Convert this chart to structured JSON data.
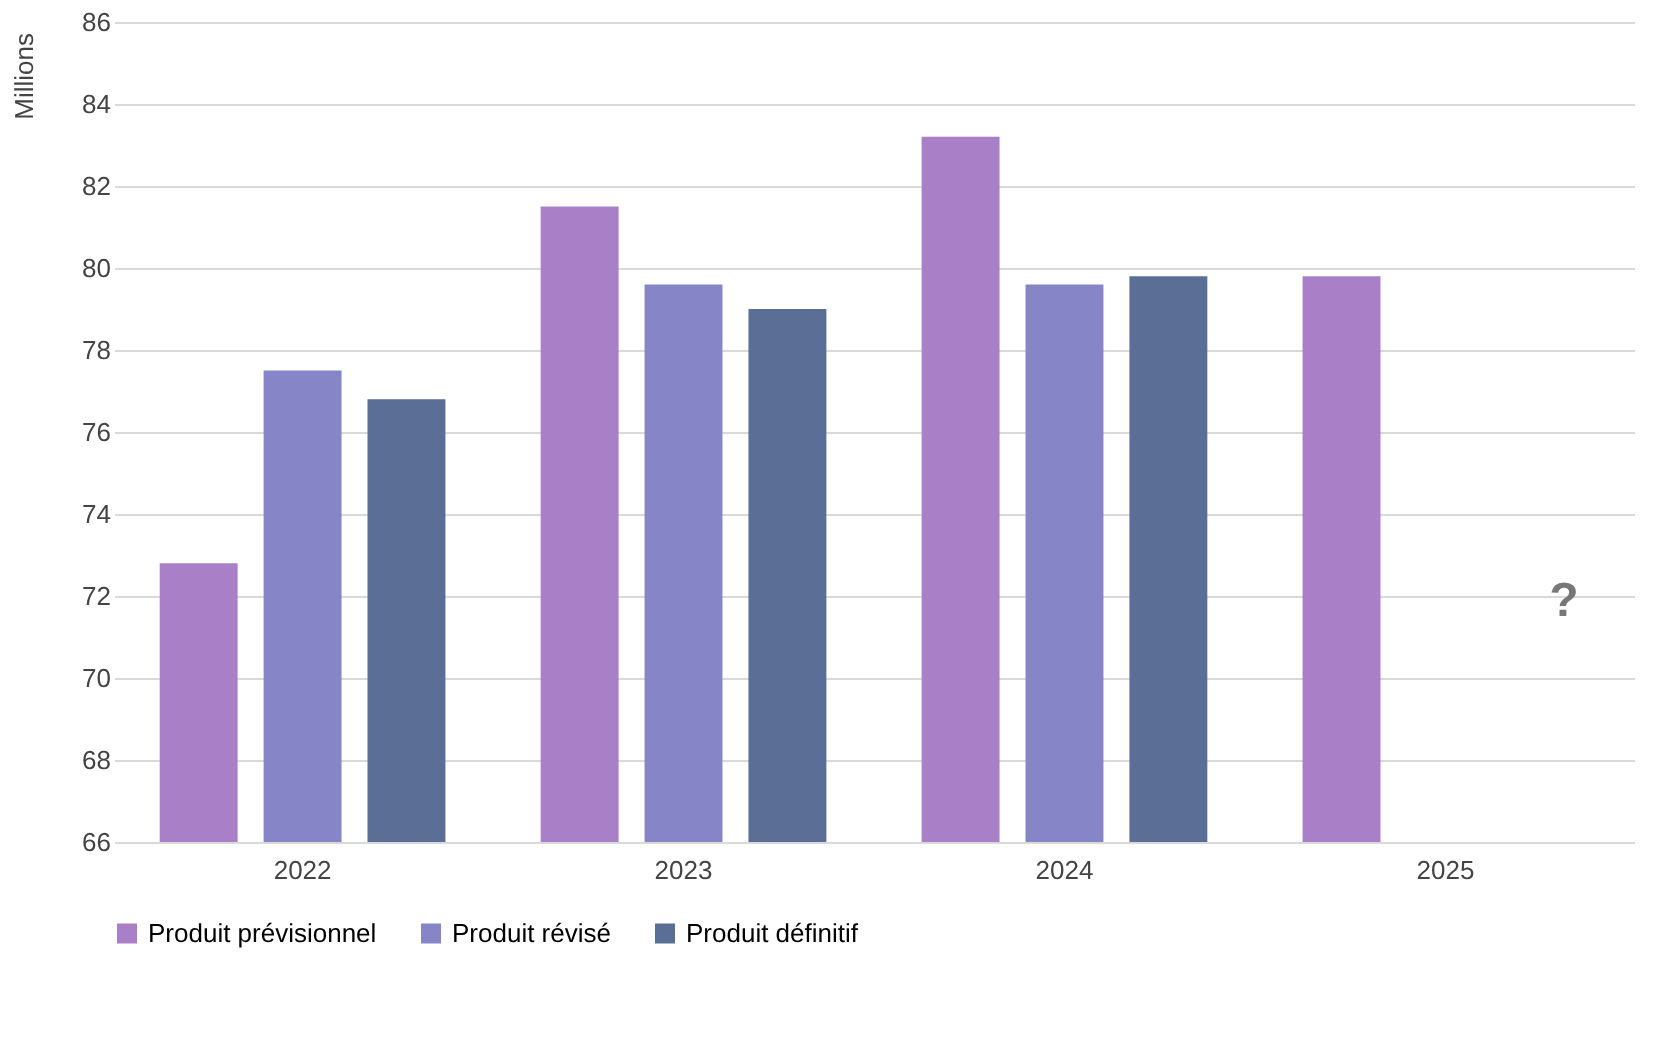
{
  "chart_data": {
    "type": "bar",
    "ylabel": "Millions",
    "categories": [
      "2022",
      "2023",
      "2024",
      "2025"
    ],
    "series": [
      {
        "name": "Produit prévisionnel",
        "color": "#a97fc7",
        "values": [
          72.8,
          81.5,
          83.2,
          79.8
        ]
      },
      {
        "name": "Produit révisé",
        "color": "#8585c8",
        "values": [
          77.5,
          79.6,
          79.6,
          null
        ]
      },
      {
        "name": "Produit définitif",
        "color": "#5a6e96",
        "values": [
          76.8,
          79.0,
          79.8,
          null
        ]
      }
    ],
    "ylim": [
      66,
      86
    ],
    "yticks": [
      66,
      68,
      70,
      72,
      74,
      76,
      78,
      80,
      82,
      84,
      86
    ],
    "grid": "y",
    "legend": "bottom",
    "annotations": [
      "?"
    ]
  }
}
